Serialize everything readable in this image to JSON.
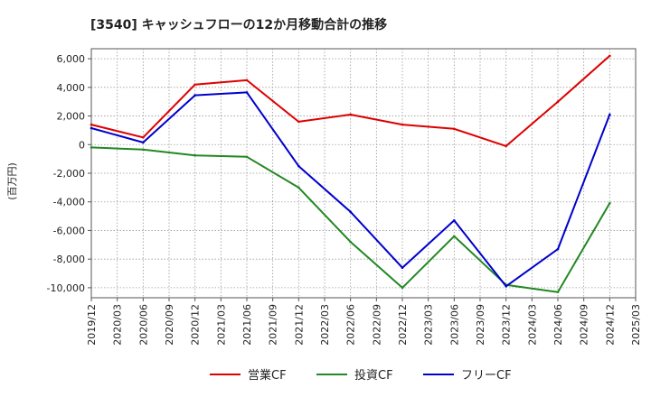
{
  "chart_data": {
    "type": "line",
    "title": "[3540]  キャッシュフローの12か月移動合計の推移",
    "ylabel": "(百万円)",
    "xlabel": "",
    "ylim": [
      -10700,
      6700
    ],
    "yticks": [
      6000,
      4000,
      2000,
      0,
      -2000,
      -4000,
      -6000,
      -8000,
      -10000
    ],
    "ytick_labels": [
      "6,000",
      "4,000",
      "2,000",
      "0",
      "-2,000",
      "-4,000",
      "-6,000",
      "-8,000",
      "-10,000"
    ],
    "categories": [
      "2019/12",
      "2020/03",
      "2020/06",
      "2020/09",
      "2020/12",
      "2021/03",
      "2021/06",
      "2021/09",
      "2021/12",
      "2022/03",
      "2022/06",
      "2022/09",
      "2022/12",
      "2023/03",
      "2023/06",
      "2023/09",
      "2023/12",
      "2024/03",
      "2024/06",
      "2024/09",
      "2024/12",
      "2025/03"
    ],
    "grid": true,
    "legend_position": "bottom",
    "series": [
      {
        "name": "営業CF",
        "color": "#dd0000",
        "points": [
          {
            "x": "2019/12",
            "y": 1400
          },
          {
            "x": "2020/06",
            "y": 500
          },
          {
            "x": "2020/12",
            "y": 4200
          },
          {
            "x": "2021/06",
            "y": 4500
          },
          {
            "x": "2021/12",
            "y": 1600
          },
          {
            "x": "2022/06",
            "y": 2100
          },
          {
            "x": "2022/12",
            "y": 1400
          },
          {
            "x": "2023/06",
            "y": 1100
          },
          {
            "x": "2023/12",
            "y": -100
          },
          {
            "x": "2024/06",
            "y": 3000
          },
          {
            "x": "2024/12",
            "y": 6200
          }
        ]
      },
      {
        "name": "投資CF",
        "color": "#228822",
        "points": [
          {
            "x": "2019/12",
            "y": -200
          },
          {
            "x": "2020/06",
            "y": -350
          },
          {
            "x": "2020/12",
            "y": -750
          },
          {
            "x": "2021/06",
            "y": -850
          },
          {
            "x": "2021/12",
            "y": -3000
          },
          {
            "x": "2022/06",
            "y": -6800
          },
          {
            "x": "2022/12",
            "y": -10000
          },
          {
            "x": "2023/06",
            "y": -6400
          },
          {
            "x": "2023/12",
            "y": -9800
          },
          {
            "x": "2024/06",
            "y": -10300
          },
          {
            "x": "2024/12",
            "y": -4100
          }
        ]
      },
      {
        "name": "フリーCF",
        "color": "#0000cc",
        "points": [
          {
            "x": "2019/12",
            "y": 1150
          },
          {
            "x": "2020/06",
            "y": 150
          },
          {
            "x": "2020/12",
            "y": 3450
          },
          {
            "x": "2021/06",
            "y": 3650
          },
          {
            "x": "2021/12",
            "y": -1500
          },
          {
            "x": "2022/06",
            "y": -4700
          },
          {
            "x": "2022/12",
            "y": -8600
          },
          {
            "x": "2023/06",
            "y": -5300
          },
          {
            "x": "2023/12",
            "y": -9900
          },
          {
            "x": "2024/06",
            "y": -7300
          },
          {
            "x": "2024/12",
            "y": 2100
          }
        ]
      }
    ]
  }
}
